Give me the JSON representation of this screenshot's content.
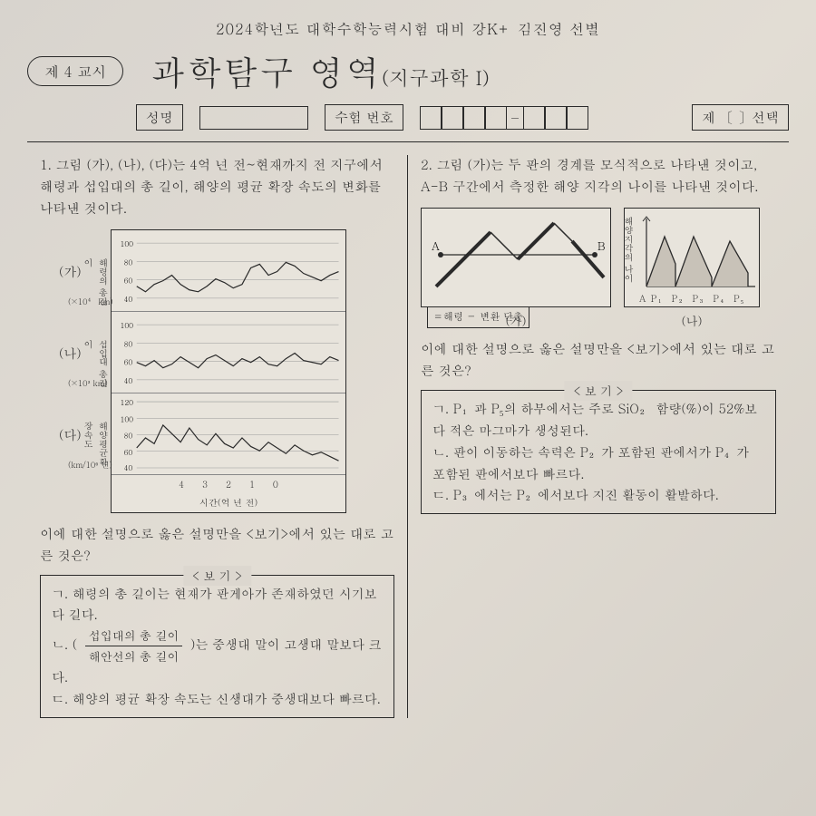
{
  "top_line": "2024학년도 대학수학능력시험 대비 강K+ 김진영 선별",
  "period_badge": "제 4 교시",
  "main_title": "과학탐구 영역",
  "sub_title": "(지구과학 I)",
  "info": {
    "name_label": "성명",
    "num_label": "수험 번호",
    "choice_label": "제 〔  〕선택"
  },
  "q1": {
    "num": "1.",
    "text": "그림 (가), (나), (다)는 4억 년 전~현재까지 전 지구에서 해령과 섭입대의 총 길이, 해양의 평균 확장 속도의 변화를 나타낸 것이다.",
    "labels": {
      "ga": "(가)",
      "na": "(나)",
      "da": "(다)"
    },
    "y_labels": {
      "ga": "해령의 총길이",
      "na": "섭입대 총길이",
      "da": "해양평균확장속도"
    },
    "units": {
      "ga": "(×10⁴ km)",
      "na": "(×10³ km)",
      "da": "(km/10⁶ 년)"
    },
    "x_label": "시간(억 년 전)",
    "charts": {
      "ga": {
        "ymin": 40,
        "ymax": 100,
        "data": [
          58,
          52,
          60,
          64,
          70,
          60,
          54,
          52,
          58,
          66,
          62,
          56,
          60,
          78,
          82,
          70,
          74,
          84,
          80,
          72,
          68,
          64,
          70,
          74
        ]
      },
      "na": {
        "ymin": 40,
        "ymax": 100,
        "data": [
          64,
          60,
          66,
          58,
          62,
          70,
          64,
          58,
          68,
          72,
          66,
          60,
          68,
          64,
          70,
          62,
          60,
          68,
          74,
          66,
          64,
          62,
          70,
          66
        ]
      },
      "da": {
        "ymin": 40,
        "ymax": 120,
        "data": [
          68,
          82,
          74,
          100,
          88,
          76,
          96,
          80,
          72,
          88,
          74,
          68,
          82,
          70,
          64,
          76,
          68,
          60,
          72,
          64,
          58,
          62,
          56,
          50
        ]
      }
    },
    "prompt": "이에 대한 설명으로 옳은 설명만을 <보기>에서 있는 대로 고른 것은?",
    "bogi_title": "< 보 기 >",
    "bogi": {
      "g1": "ㄱ. 해령의 총 길이는 현재가 판게아가 존재하였던 시기보다 길다.",
      "g2a": "ㄴ. (",
      "g2_frac_top": "섭입대의 총 길이",
      "g2_frac_bot": "해안선의 총 길이",
      "g2b": ")는 중생대 말이 고생대 말보다 크다.",
      "g3": "ㄷ. 해양의 평균 확장 속도는 신생대가 중생대보다 빠르다."
    }
  },
  "q2": {
    "num": "2.",
    "text": "그림 (가)는 두 판의 경계를 모식적으로 나타낸 것이고, A-B 구간에서 측정한 해양 지각의 나이를 나타낸 것이다.",
    "legend": "＝해령  － 변환 단층",
    "fig_ga": "(가)",
    "fig_na": "(나)",
    "y_label_na": "해양지각의 나이",
    "x_ticks": "A  P₁ P₂  P₃ P₄  P₅",
    "prompt": "이에 대한 설명으로 옳은 설명만을 <보기>에서 있는 대로 고른 것은?",
    "bogi_title": "< 보 기 >",
    "bogi": {
      "g1": "ㄱ. P₁과 P₅의 하부에서는 주로 SiO₂ 함량(%)이 52%보다 적은 마그마가 생성된다.",
      "g2": "ㄴ. 판이 이동하는 속력은 P₂가 포함된 판에서가 P₄가 포함된 판에서보다 빠르다.",
      "g3": "ㄷ. P₃에서는 P₂에서보다 지진 활동이 활발하다."
    }
  }
}
